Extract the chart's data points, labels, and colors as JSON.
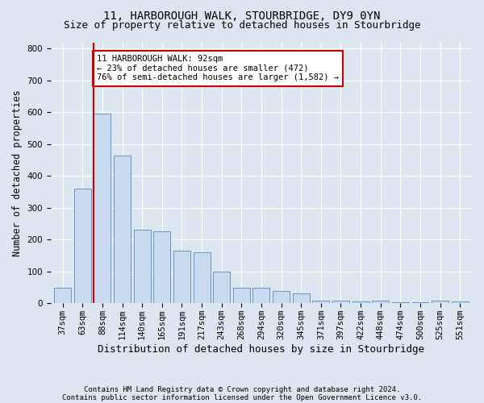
{
  "title": "11, HARBOROUGH WALK, STOURBRIDGE, DY9 0YN",
  "subtitle": "Size of property relative to detached houses in Stourbridge",
  "xlabel": "Distribution of detached houses by size in Stourbridge",
  "ylabel": "Number of detached properties",
  "categories": [
    "37sqm",
    "63sqm",
    "88sqm",
    "114sqm",
    "140sqm",
    "165sqm",
    "191sqm",
    "217sqm",
    "243sqm",
    "268sqm",
    "294sqm",
    "320sqm",
    "345sqm",
    "371sqm",
    "397sqm",
    "422sqm",
    "448sqm",
    "474sqm",
    "500sqm",
    "525sqm",
    "551sqm"
  ],
  "values": [
    50,
    360,
    595,
    465,
    230,
    225,
    165,
    160,
    100,
    50,
    50,
    40,
    30,
    8,
    8,
    5,
    8,
    3,
    3,
    8,
    5
  ],
  "bar_color": "#c9d9ee",
  "bar_edge_color": "#5588bb",
  "red_line_index": 2,
  "red_line_color": "#cc0000",
  "annotation_text": "11 HARBOROUGH WALK: 92sqm\n← 23% of detached houses are smaller (472)\n76% of semi-detached houses are larger (1,582) →",
  "annotation_box_color": "#ffffff",
  "annotation_box_edge": "#cc0000",
  "ylim": [
    0,
    820
  ],
  "yticks": [
    0,
    100,
    200,
    300,
    400,
    500,
    600,
    700,
    800
  ],
  "background_color": "#dce6f0",
  "plot_bg_color": "#dce6f0",
  "footer_line1": "Contains HM Land Registry data © Crown copyright and database right 2024.",
  "footer_line2": "Contains public sector information licensed under the Open Government Licence v3.0.",
  "title_fontsize": 10,
  "subtitle_fontsize": 9,
  "tick_fontsize": 7.5,
  "xlabel_fontsize": 9,
  "ylabel_fontsize": 8.5
}
